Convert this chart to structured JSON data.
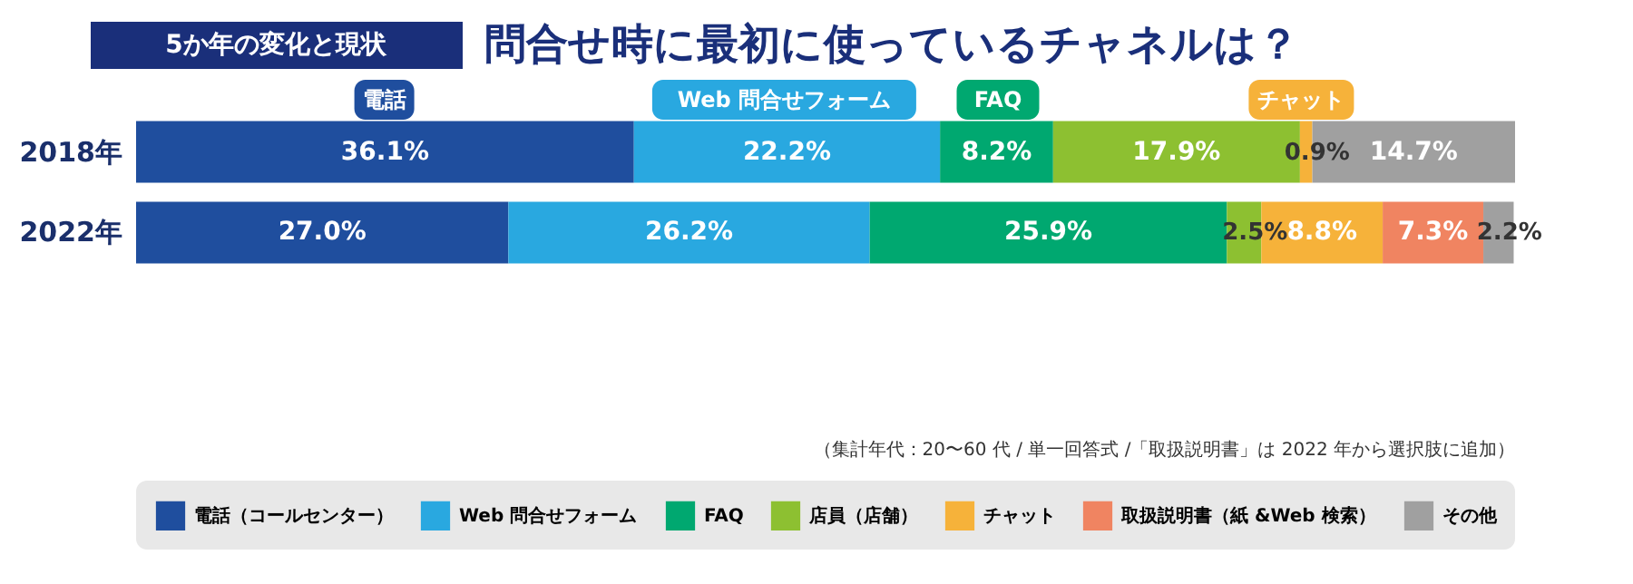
{
  "chart_data": {
    "type": "bar",
    "orientation": "horizontal",
    "stacked": true,
    "title": "問合せ時に最初に使っているチャネルは？",
    "subtitle": "5か年の変化と現状",
    "categories": [
      "2018年",
      "2022年"
    ],
    "series": [
      {
        "name": "電話（コールセンター）",
        "color": "#1f4e9e",
        "values": [
          36.1,
          27.0
        ],
        "value_labels": [
          "36.1%",
          "27.0%"
        ]
      },
      {
        "name": "Web 問合せフォーム",
        "color": "#29a8e0",
        "values": [
          22.2,
          26.2
        ],
        "value_labels": [
          "22.2%",
          "26.2%"
        ]
      },
      {
        "name": "FAQ",
        "color": "#00a870",
        "values": [
          8.2,
          25.9
        ],
        "value_labels": [
          "8.2%",
          "25.9%"
        ]
      },
      {
        "name": "店員（店舗）",
        "color": "#8dc031",
        "values": [
          17.9,
          2.5
        ],
        "value_labels": [
          "17.9%",
          "2.5%"
        ]
      },
      {
        "name": "チャット",
        "color": "#f6b23a",
        "values": [
          0.9,
          8.8
        ],
        "value_labels": [
          "0.9%",
          "8.8%"
        ]
      },
      {
        "name": "取扱説明書（紙 &Web 検索）",
        "color": "#f08461",
        "values": [
          null,
          7.3
        ],
        "value_labels": [
          null,
          "7.3%"
        ]
      },
      {
        "name": "その他",
        "color": "#a0a0a0",
        "values": [
          14.7,
          2.2
        ],
        "value_labels": [
          "14.7%",
          "2.2%"
        ]
      }
    ],
    "xlim": [
      0,
      100
    ],
    "tick_labels": "y",
    "legend": "bottom",
    "annotations": [
      "電話",
      "Web 問合せフォーム",
      "FAQ",
      "チャット",
      "（集計年代：20〜60 代 / 単一回答式 /「取扱説明書」は 2022 年から選択肢に追加）"
    ]
  }
}
